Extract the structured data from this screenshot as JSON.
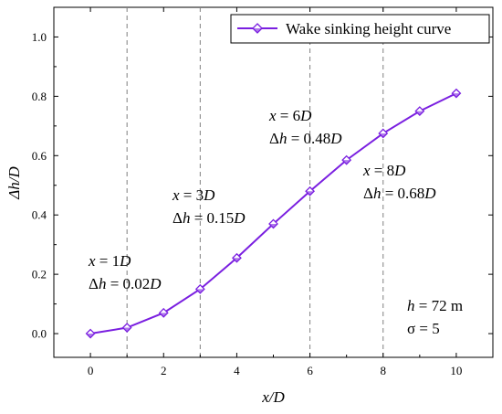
{
  "chart_data": {
    "type": "line",
    "xlabel": {
      "parts": [
        {
          "t": "x",
          "i": true
        },
        {
          "t": "/",
          "i": false
        },
        {
          "t": "D",
          "i": true
        }
      ]
    },
    "ylabel": {
      "parts": [
        {
          "t": "Δ",
          "i": false
        },
        {
          "t": "h",
          "i": true
        },
        {
          "t": "/",
          "i": false
        },
        {
          "t": "D",
          "i": true
        }
      ]
    },
    "xlim": [
      -1,
      11
    ],
    "ylim": [
      -0.08,
      1.1
    ],
    "x_ticks": [
      0,
      2,
      4,
      6,
      8,
      10
    ],
    "y_ticks": [
      0.0,
      0.2,
      0.4,
      0.6,
      0.8,
      1.0
    ],
    "y_tick_labels": [
      "0.0",
      "0.2",
      "0.4",
      "0.6",
      "0.8",
      "1.0"
    ],
    "grid": false,
    "vertical_reference_lines": [
      1,
      3,
      6,
      8
    ],
    "legend_position": "top-right",
    "series": [
      {
        "name": "Wake sinking height curve",
        "color": "#7a1fe0",
        "marker": "diamond",
        "x": [
          0,
          1,
          2,
          3,
          4,
          5,
          6,
          7,
          8,
          9,
          10
        ],
        "y": [
          0.0,
          0.02,
          0.07,
          0.15,
          0.255,
          0.37,
          0.48,
          0.585,
          0.675,
          0.75,
          0.81
        ]
      }
    ],
    "annotations": [
      {
        "lines": [
          [
            {
              "t": "x",
              "i": true
            },
            {
              "t": " = 1",
              "i": false
            },
            {
              "t": "D",
              "i": true
            }
          ],
          [
            {
              "t": "Δ",
              "i": false
            },
            {
              "t": "h",
              "i": true
            },
            {
              "t": " = 0.02",
              "i": false
            },
            {
              "t": "D",
              "i": true
            }
          ]
        ]
      },
      {
        "lines": [
          [
            {
              "t": "x",
              "i": true
            },
            {
              "t": " = 3",
              "i": false
            },
            {
              "t": "D",
              "i": true
            }
          ],
          [
            {
              "t": "Δ",
              "i": false
            },
            {
              "t": "h",
              "i": true
            },
            {
              "t": " = 0.15",
              "i": false
            },
            {
              "t": "D",
              "i": true
            }
          ]
        ]
      },
      {
        "lines": [
          [
            {
              "t": "x",
              "i": true
            },
            {
              "t": " = 6",
              "i": false
            },
            {
              "t": "D",
              "i": true
            }
          ],
          [
            {
              "t": "Δ",
              "i": false
            },
            {
              "t": "h",
              "i": true
            },
            {
              "t": " = 0.48",
              "i": false
            },
            {
              "t": "D",
              "i": true
            }
          ]
        ]
      },
      {
        "lines": [
          [
            {
              "t": "x",
              "i": true
            },
            {
              "t": " = 8",
              "i": false
            },
            {
              "t": "D",
              "i": true
            }
          ],
          [
            {
              "t": "Δ",
              "i": false
            },
            {
              "t": "h",
              "i": true
            },
            {
              "t": " = 0.68",
              "i": false
            },
            {
              "t": "D",
              "i": true
            }
          ]
        ]
      },
      {
        "lines": [
          [
            {
              "t": "h",
              "i": true
            },
            {
              "t": " = 72 m",
              "i": false
            }
          ],
          [
            {
              "t": "σ = 5",
              "i": false
            }
          ]
        ]
      }
    ]
  }
}
